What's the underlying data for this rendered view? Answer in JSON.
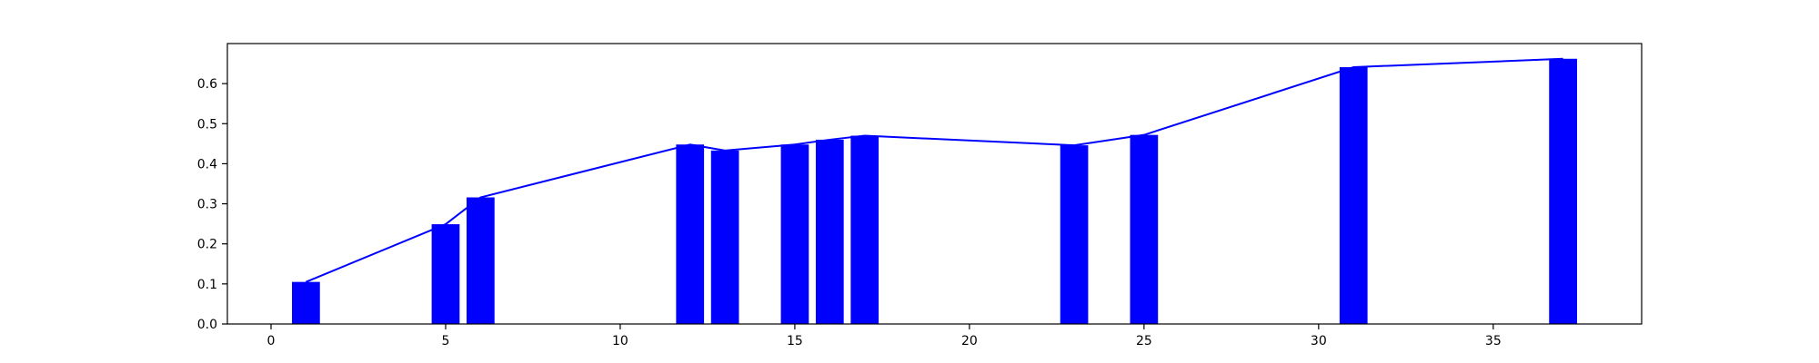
{
  "chart_data": {
    "type": "bar",
    "title": "",
    "xlabel": "",
    "ylabel": "",
    "xlim": [
      -1.25,
      39.25
    ],
    "ylim": [
      0.0,
      0.7
    ],
    "grid": false,
    "bar_color": "#0000ff",
    "line_color": "#0000ff",
    "x_ticks": [
      0,
      5,
      10,
      15,
      20,
      25,
      30,
      35
    ],
    "y_ticks": [
      0.0,
      0.1,
      0.2,
      0.3,
      0.4,
      0.5,
      0.6
    ],
    "x_tick_labels": [
      "0",
      "5",
      "10",
      "15",
      "20",
      "25",
      "30",
      "35"
    ],
    "y_tick_labels": [
      "0.0",
      "0.1",
      "0.2",
      "0.3",
      "0.4",
      "0.5",
      "0.6"
    ],
    "series": [
      {
        "type": "bar",
        "x": [
          1,
          5,
          6,
          12,
          13,
          15,
          16,
          17,
          23,
          25,
          31,
          37
        ],
        "values": [
          0.105,
          0.249,
          0.316,
          0.448,
          0.433,
          0.448,
          0.46,
          0.47,
          0.446,
          0.472,
          0.641,
          0.662
        ]
      },
      {
        "type": "line",
        "x": [
          1,
          5,
          6,
          12,
          13,
          15,
          16,
          17,
          23,
          25,
          31,
          37
        ],
        "values": [
          0.105,
          0.249,
          0.316,
          0.448,
          0.433,
          0.448,
          0.46,
          0.47,
          0.446,
          0.472,
          0.641,
          0.662
        ]
      }
    ]
  }
}
